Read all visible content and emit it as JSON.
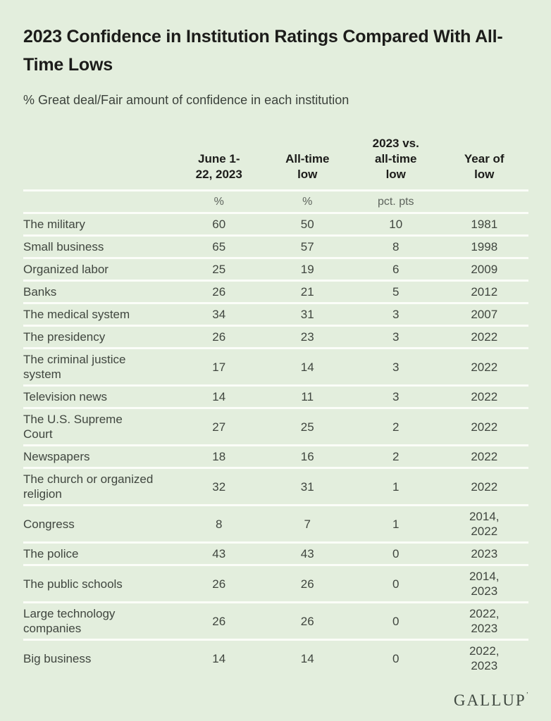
{
  "page": {
    "title": "2023 Confidence in Institution Ratings Compared With All-\nTime Lows",
    "subtitle": "% Great deal/Fair amount of confidence in each institution",
    "brand": "GALLUP",
    "brand_mark": "’"
  },
  "colors": {
    "background": "#e3eedd",
    "divider": "#fbfdf8",
    "title_text": "#1c1c1a",
    "body_text": "#40463f",
    "muted_text": "#5e645d",
    "brand_text": "#414a42"
  },
  "table": {
    "columns": [
      {
        "label": "",
        "unit": ""
      },
      {
        "label": "June 1-\n22, 2023",
        "unit": "%"
      },
      {
        "label": "All-time\nlow",
        "unit": "%"
      },
      {
        "label": "2023 vs.\nall-time\nlow",
        "unit": "pct. pts"
      },
      {
        "label": "Year of\nlow",
        "unit": ""
      }
    ],
    "rows": [
      {
        "institution": "The military",
        "current": "60",
        "all_time_low": "50",
        "diff": "10",
        "year": "1981"
      },
      {
        "institution": "Small business",
        "current": "65",
        "all_time_low": "57",
        "diff": "8",
        "year": "1998"
      },
      {
        "institution": "Organized labor",
        "current": "25",
        "all_time_low": "19",
        "diff": "6",
        "year": "2009"
      },
      {
        "institution": "Banks",
        "current": "26",
        "all_time_low": "21",
        "diff": "5",
        "year": "2012"
      },
      {
        "institution": "The medical system",
        "current": "34",
        "all_time_low": "31",
        "diff": "3",
        "year": "2007"
      },
      {
        "institution": "The presidency",
        "current": "26",
        "all_time_low": "23",
        "diff": "3",
        "year": "2022"
      },
      {
        "institution": "The criminal justice system",
        "current": "17",
        "all_time_low": "14",
        "diff": "3",
        "year": "2022"
      },
      {
        "institution": "Television news",
        "current": "14",
        "all_time_low": "11",
        "diff": "3",
        "year": "2022"
      },
      {
        "institution": "The U.S. Supreme Court",
        "current": "27",
        "all_time_low": "25",
        "diff": "2",
        "year": "2022"
      },
      {
        "institution": "Newspapers",
        "current": "18",
        "all_time_low": "16",
        "diff": "2",
        "year": "2022"
      },
      {
        "institution": "The church or organized religion",
        "current": "32",
        "all_time_low": "31",
        "diff": "1",
        "year": "2022"
      },
      {
        "institution": "Congress",
        "current": "8",
        "all_time_low": "7",
        "diff": "1",
        "year": "2014,\n2022"
      },
      {
        "institution": "The police",
        "current": "43",
        "all_time_low": "43",
        "diff": "0",
        "year": "2023"
      },
      {
        "institution": "The public schools",
        "current": "26",
        "all_time_low": "26",
        "diff": "0",
        "year": "2014,\n2023"
      },
      {
        "institution": "Large technology companies",
        "current": "26",
        "all_time_low": "26",
        "diff": "0",
        "year": "2022,\n2023"
      },
      {
        "institution": "Big business",
        "current": "14",
        "all_time_low": "14",
        "diff": "0",
        "year": "2022,\n2023"
      }
    ]
  },
  "chart_data": {
    "type": "table",
    "title": "2023 Confidence in Institution Ratings Compared With All-Time Lows",
    "subtitle": "% Great deal/Fair amount of confidence in each institution",
    "categories": [
      "The military",
      "Small business",
      "Organized labor",
      "Banks",
      "The medical system",
      "The presidency",
      "The criminal justice system",
      "Television news",
      "The U.S. Supreme Court",
      "Newspapers",
      "The church or organized religion",
      "Congress",
      "The police",
      "The public schools",
      "Large technology companies",
      "Big business"
    ],
    "series": [
      {
        "name": "June 1-22, 2023 (%)",
        "values": [
          60,
          65,
          25,
          26,
          34,
          26,
          17,
          14,
          27,
          18,
          32,
          8,
          43,
          26,
          26,
          14
        ]
      },
      {
        "name": "All-time low (%)",
        "values": [
          50,
          57,
          19,
          21,
          31,
          23,
          14,
          11,
          25,
          16,
          31,
          7,
          43,
          26,
          26,
          14
        ]
      },
      {
        "name": "2023 vs. all-time low (pct. pts)",
        "values": [
          10,
          8,
          6,
          5,
          3,
          3,
          3,
          3,
          2,
          2,
          1,
          1,
          0,
          0,
          0,
          0
        ]
      },
      {
        "name": "Year of low",
        "values": [
          "1981",
          "1998",
          "2009",
          "2012",
          "2007",
          "2022",
          "2022",
          "2022",
          "2022",
          "2022",
          "2022",
          "2014, 2022",
          "2023",
          "2014, 2023",
          "2022, 2023",
          "2022, 2023"
        ]
      }
    ],
    "source_brand": "GALLUP"
  }
}
